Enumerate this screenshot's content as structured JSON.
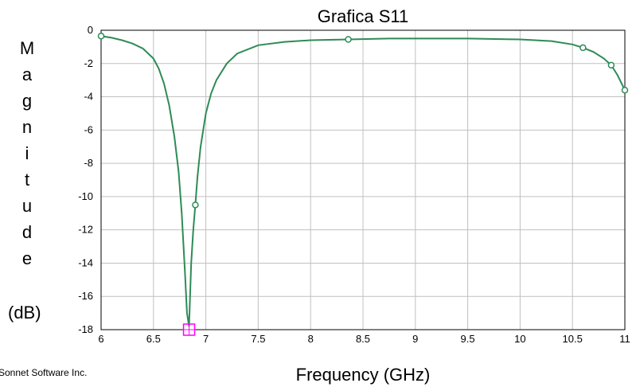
{
  "chart_data": {
    "type": "line",
    "title": "Grafica S11",
    "xlabel": "Frequency (GHz)",
    "ylabel": "Magnitude",
    "yunit": "(dB)",
    "credit": "Sonnet Software Inc.",
    "xlim": [
      6,
      11
    ],
    "ylim": [
      -18,
      0
    ],
    "xticks": [
      6,
      6.5,
      7,
      7.5,
      8,
      8.5,
      9,
      9.5,
      10,
      10.5,
      11
    ],
    "xtick_labels": [
      "6",
      "6.5",
      "7",
      "7.5",
      "8",
      "8.5",
      "9",
      "9.5",
      "10",
      "10.5",
      "11"
    ],
    "yticks": [
      0,
      -2,
      -4,
      -6,
      -8,
      -10,
      -12,
      -14,
      -16,
      -18
    ],
    "ytick_labels": [
      "0",
      "-2",
      "-4",
      "-6",
      "-8",
      "-10",
      "-12",
      "-14",
      "-16",
      "-18"
    ],
    "grid": true,
    "colors": {
      "line": "#2e8b57",
      "marker": "#ff00ff",
      "grid": "#c0c0c0"
    },
    "series": [
      {
        "x": [
          6.0,
          6.1,
          6.2,
          6.3,
          6.4,
          6.5,
          6.55,
          6.6,
          6.65,
          6.7,
          6.74,
          6.77,
          6.8,
          6.82,
          6.84,
          6.86,
          6.88,
          6.9,
          6.92,
          6.95,
          7.0,
          7.05,
          7.1,
          7.2,
          7.3,
          7.5,
          7.75,
          8.0,
          8.36,
          8.75,
          9.0,
          9.5,
          10.0,
          10.3,
          10.5,
          10.6,
          10.7,
          10.8,
          10.87,
          10.93,
          11.0
        ],
        "y": [
          -0.35,
          -0.45,
          -0.6,
          -0.8,
          -1.1,
          -1.7,
          -2.3,
          -3.2,
          -4.5,
          -6.4,
          -8.5,
          -11.0,
          -14.5,
          -17.0,
          -17.8,
          -14.0,
          -12.0,
          -10.5,
          -8.8,
          -7.0,
          -5.0,
          -3.8,
          -3.0,
          -2.0,
          -1.4,
          -0.9,
          -0.7,
          -0.6,
          -0.55,
          -0.5,
          -0.5,
          -0.5,
          -0.55,
          -0.65,
          -0.85,
          -1.05,
          -1.3,
          -1.7,
          -2.1,
          -2.7,
          -3.6
        ]
      }
    ],
    "markers": {
      "x": [
        6.0,
        6.9,
        8.36,
        10.6,
        10.87,
        11.0
      ],
      "y": [
        -0.35,
        -10.5,
        -0.55,
        -1.05,
        -2.1,
        -3.6
      ]
    },
    "highlight": {
      "x": 6.84,
      "y": -18.0
    }
  }
}
